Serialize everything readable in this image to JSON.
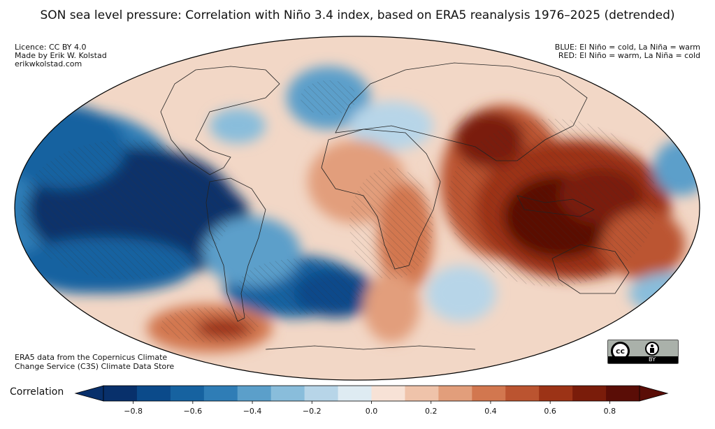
{
  "title": "SON sea level pressure: Correlation with Niño 3.4 index, based on ERA5 reanalysis 1976–2025 (detrended)",
  "credits": [
    "Licence: CC BY 4.0",
    "Made by Erik W. Kolstad",
    "erikwkolstad.com"
  ],
  "legend_note": [
    "BLUE: El Niño = cold, La Niña = warm",
    "RED: El Niño = warm, La Niña = cold"
  ],
  "source": [
    "ERA5 data from the Copernicus Climate",
    "Change Service (C3S) Climate Data Store"
  ],
  "badge": {
    "cc": "cc",
    "by": "BY"
  },
  "colorbar": {
    "label": "Correlation",
    "ticks": [
      "−0.8",
      "−0.6",
      "−0.4",
      "−0.2",
      "0.0",
      "0.2",
      "0.4",
      "0.6",
      "0.8"
    ],
    "tick_values": [
      -0.8,
      -0.6,
      -0.4,
      -0.2,
      0.0,
      0.2,
      0.4,
      0.6,
      0.8
    ],
    "range": [
      -0.9,
      0.9
    ],
    "colors": [
      "#08306b",
      "#0b4a8a",
      "#1662a0",
      "#2f7db6",
      "#5b9fca",
      "#89bddb",
      "#b7d5e8",
      "#deebf2",
      "#f7e2d6",
      "#efc3aa",
      "#e29e7b",
      "#d2774f",
      "#bb5430",
      "#9c3316",
      "#7a1c0a",
      "#5a0d06"
    ]
  }
}
